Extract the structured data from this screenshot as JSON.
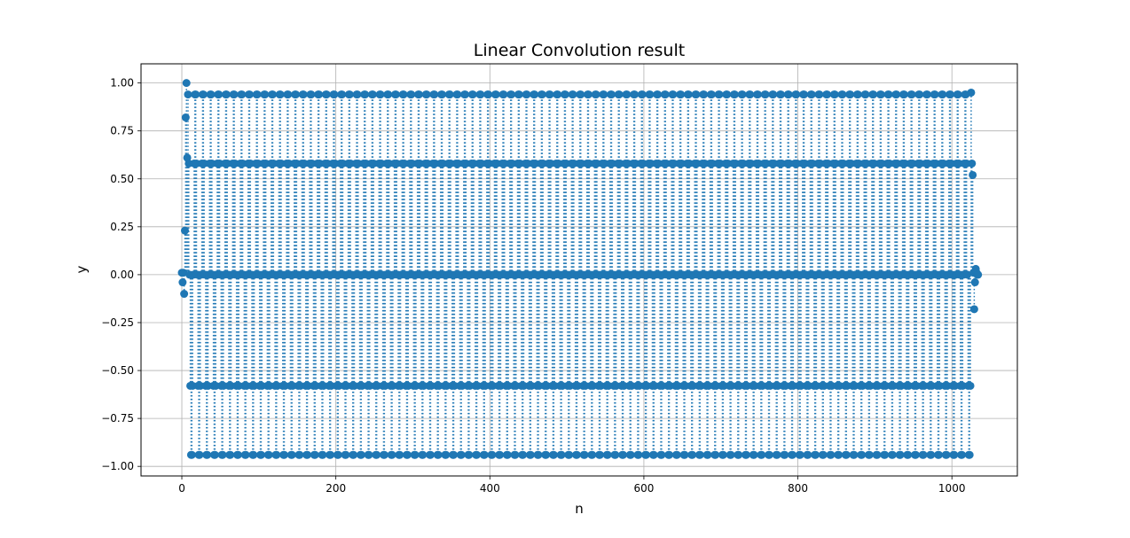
{
  "chart_data": {
    "type": "stem",
    "title": "Linear Convolution result",
    "xlabel": "n",
    "ylabel": "y",
    "xlim": [
      -53,
      1085
    ],
    "ylim": [
      -1.05,
      1.1
    ],
    "xticks": [
      0,
      200,
      400,
      600,
      800,
      1000
    ],
    "xtick_labels": [
      "0",
      "200",
      "400",
      "600",
      "800",
      "1000"
    ],
    "yticks": [
      -1.0,
      -0.75,
      -0.5,
      -0.25,
      0.0,
      0.25,
      0.5,
      0.75,
      1.0
    ],
    "ytick_labels": [
      "−1.00",
      "−0.75",
      "−0.50",
      "−0.25",
      "0.00",
      "0.25",
      "0.50",
      "0.75",
      "1.00"
    ],
    "grid": true,
    "colors": {
      "marker": "#1f77b4",
      "stem": "#1f77b4",
      "baseline": "#2ca02c"
    },
    "series": [
      {
        "n_start": 0,
        "n_end": 1034,
        "edge_values": {
          "0": 0.01,
          "1": -0.04,
          "2": 0.01,
          "3": -0.1,
          "4": 0.23,
          "5": 0.82,
          "6": 1.0,
          "7": 0.61,
          "1025": 0.95,
          "1026": 0.58,
          "1027": 0.52,
          "1028": 0.01,
          "1029": -0.18,
          "1030": -0.04,
          "1031": 0.03,
          "1032": 0.01,
          "1033": 0.0,
          "1034": 0.0
        },
        "periodic_pattern": [
          0.94,
          0.58,
          0.0,
          -0.58,
          -0.94,
          -0.94,
          -0.58,
          0.0,
          0.58,
          0.94
        ],
        "periodic_start": 8,
        "periodic_end": 1024
      }
    ]
  }
}
